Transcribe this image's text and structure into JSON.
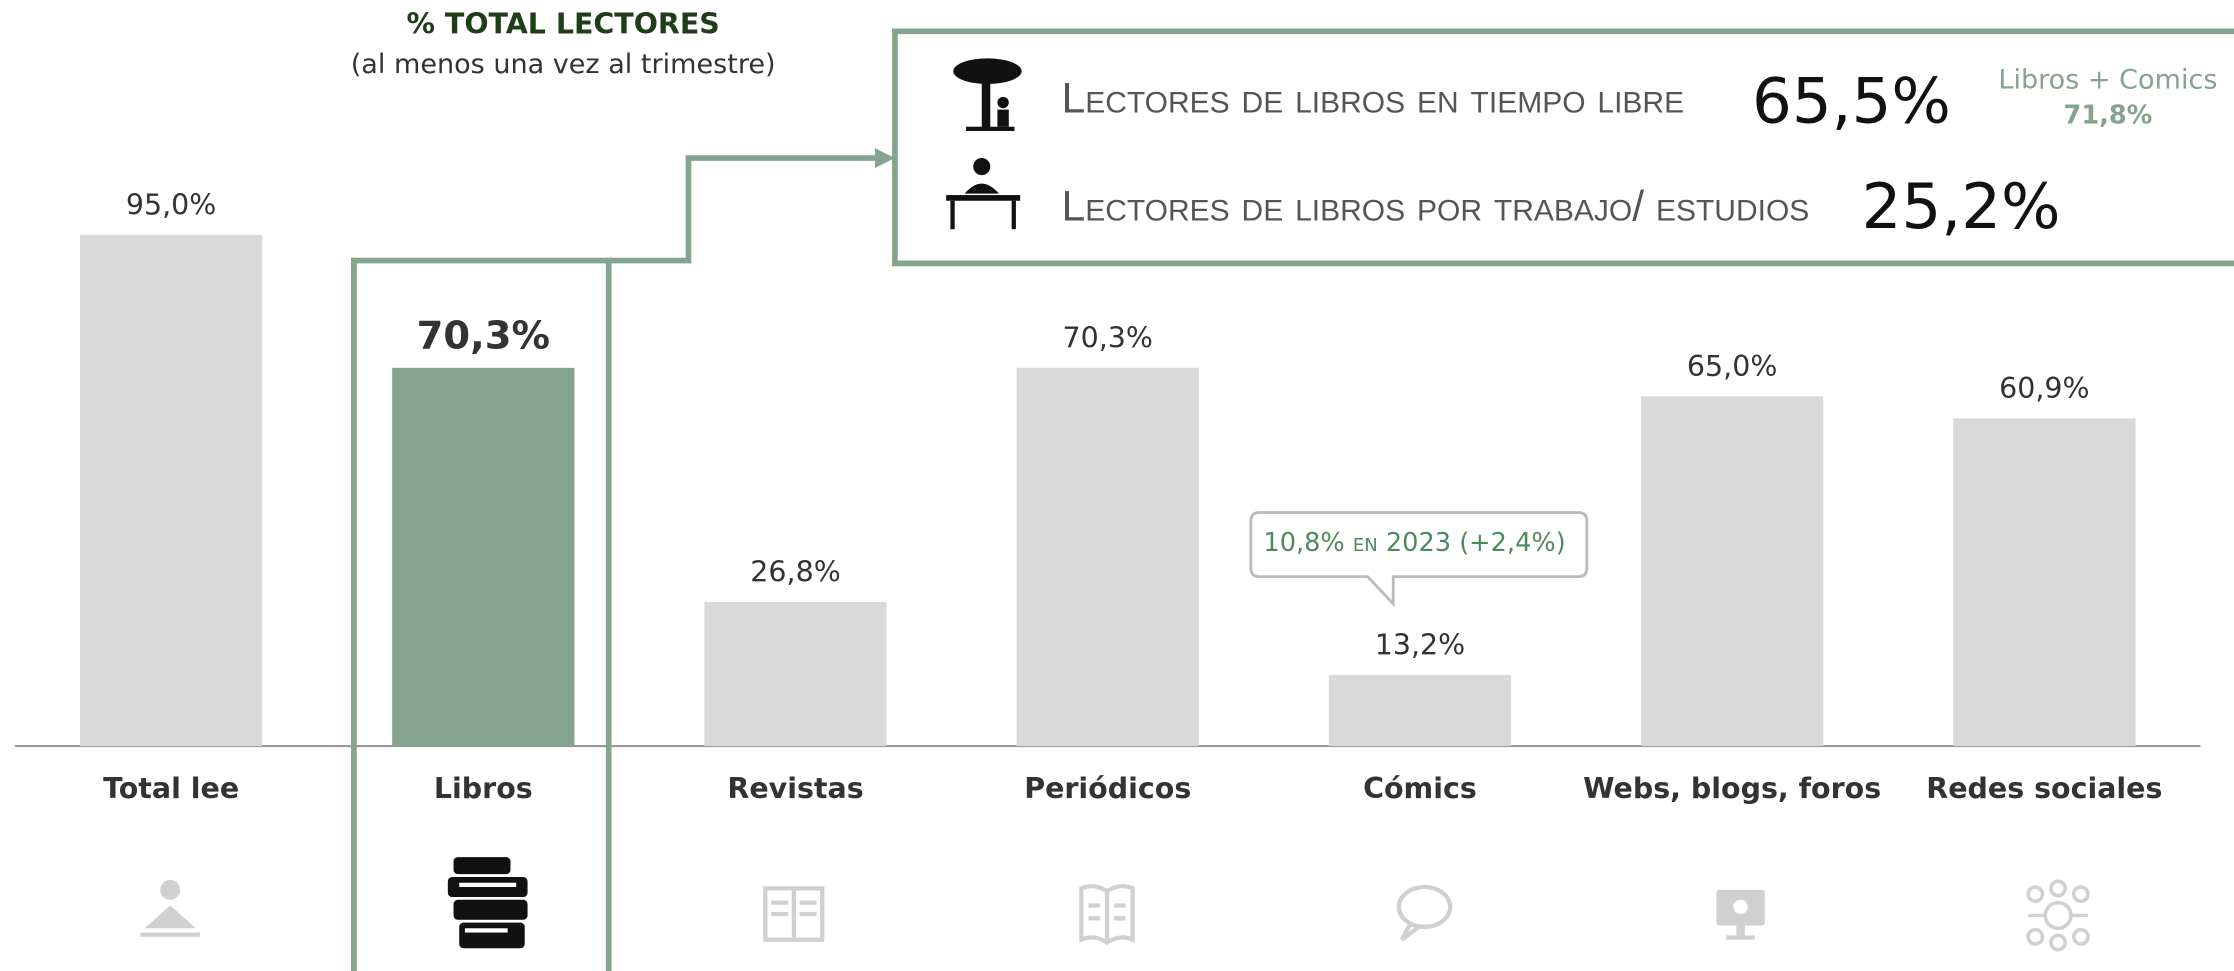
{
  "chart_data": {
    "type": "bar",
    "title": "% TOTAL LECTORES",
    "subtitle": "(al menos una vez al trimestre)",
    "categories": [
      "Total lee",
      "Libros",
      "Revistas",
      "Periódicos",
      "Cómics",
      "Webs, blogs, foros",
      "Redes sociales"
    ],
    "values": [
      95.0,
      70.3,
      26.8,
      70.3,
      13.2,
      65.0,
      60.9
    ],
    "value_labels": [
      "95,0%",
      "70,3%",
      "26,8%",
      "70,3%",
      "13,2%",
      "65,0%",
      "60,9%"
    ],
    "colors": [
      "#d9d9d9",
      "#84a48e",
      "#d9d9d9",
      "#d9d9d9",
      "#d9d9d9",
      "#d9d9d9",
      "#d9d9d9"
    ],
    "annotations": {
      "leisure_label": "Lectores de libros en tiempo libre",
      "leisure_value": "65,5%",
      "work_label": "Lectores de libros por trabajo/ estudios",
      "work_value": "25,2%",
      "combined_label": "Libros + Comics",
      "combined_value": "71,8%",
      "comics_callout": "10,8% en 2023 (+2,4%)"
    }
  }
}
